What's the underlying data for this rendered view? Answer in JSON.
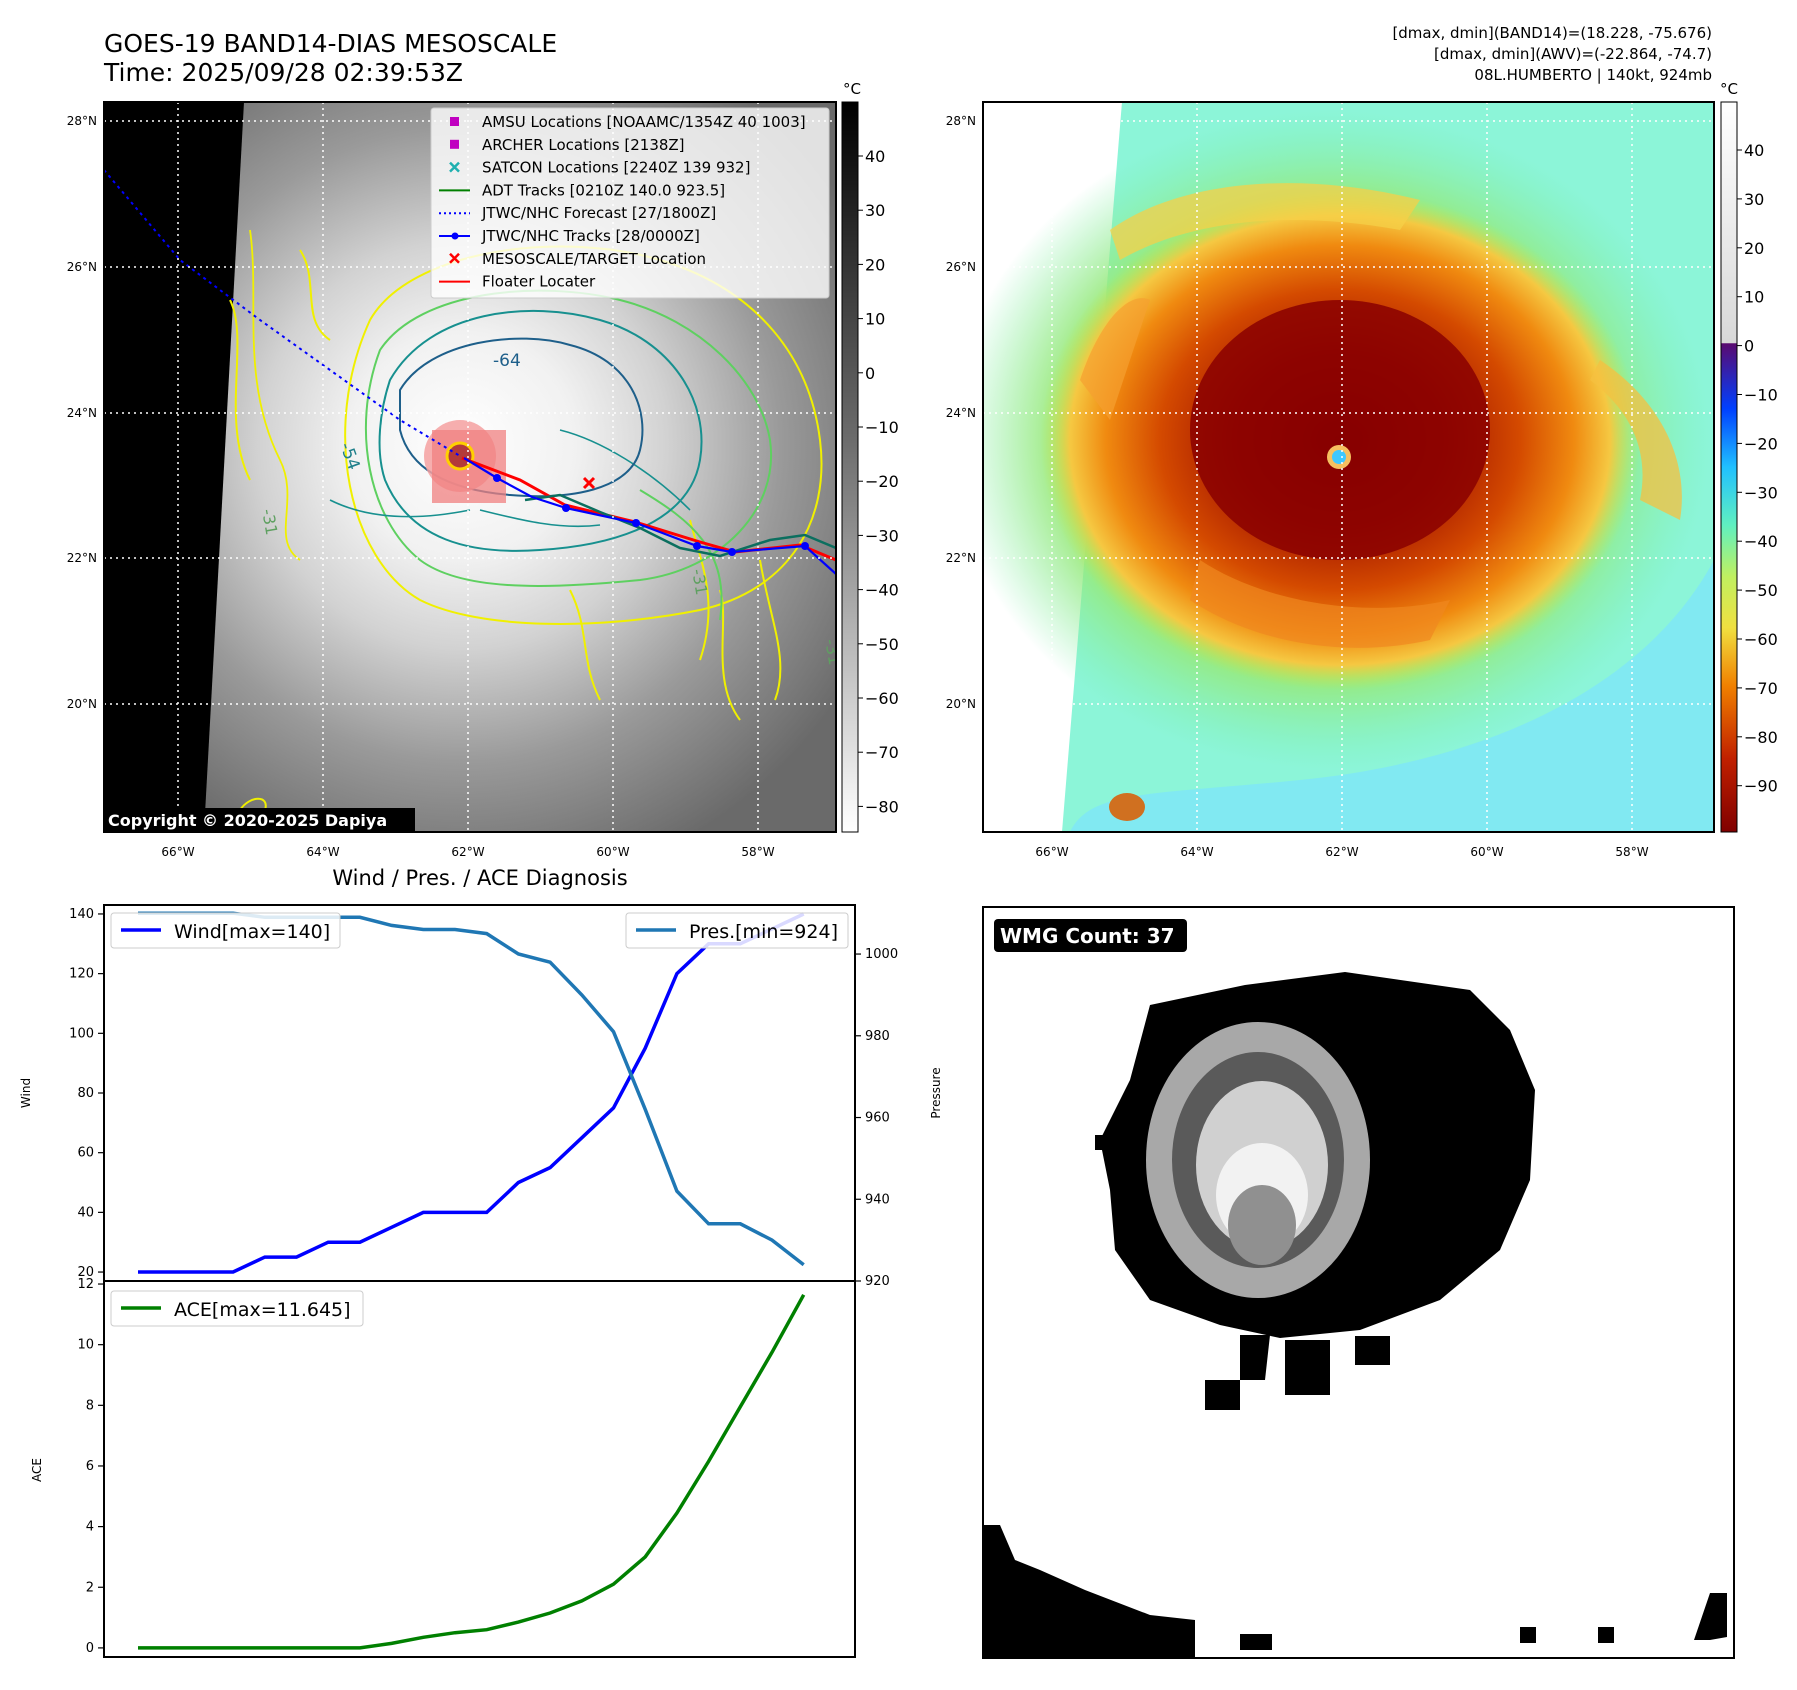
{
  "header": {
    "title_line1": "GOES-19 BAND14-DIAS MESOSCALE",
    "title_line2": "Time: 2025/09/28 02:39:53Z",
    "info_line1": "[dmax, dmin](BAND14)=(18.228, -75.676)",
    "info_line2": "[dmax, dmin](AWV)=(-22.864, -74.7)",
    "info_line3": "08L.HUMBERTO | 140kt, 924mb"
  },
  "map_axes": {
    "lon_labels": [
      "66°W",
      "64°W",
      "62°W",
      "60°W",
      "58°W"
    ],
    "lat_labels": [
      "28°N",
      "26°N",
      "24°N",
      "22°N",
      "20°N"
    ]
  },
  "left_map": {
    "copyright": "Copyright © 2020-2025 Dapiya",
    "contour_labels": [
      "-64",
      "-54",
      "-31",
      "-31",
      "-31"
    ],
    "legend": [
      {
        "label": "AMSU Locations [NOAAMC/1354Z 40 1003]",
        "color": "#c000c0",
        "marker": "square"
      },
      {
        "label": "ARCHER Locations [2138Z]",
        "color": "#c000c0",
        "marker": "square"
      },
      {
        "label": "SATCON Locations [2240Z 139 932]",
        "color": "#20b0b0",
        "marker": "x"
      },
      {
        "label": "ADT Tracks [0210Z 140.0 923.5]",
        "color": "#008000",
        "marker": "line"
      },
      {
        "label": "JTWC/NHC Forecast [27/1800Z]",
        "color": "#0000ff",
        "marker": "dotted"
      },
      {
        "label": "JTWC/NHC Tracks [28/0000Z]",
        "color": "#0000ff",
        "marker": "line-dot"
      },
      {
        "label": "MESOSCALE/TARGET Location",
        "color": "#ff0000",
        "marker": "x"
      },
      {
        "label": "Floater Locater",
        "color": "#ff0000",
        "marker": "line"
      }
    ],
    "colorbar_unit": "°C",
    "colorbar_ticks": [
      "40",
      "30",
      "20",
      "10",
      "0",
      "−10",
      "−20",
      "−30",
      "−40",
      "−50",
      "−60",
      "−70",
      "−80"
    ]
  },
  "right_map": {
    "colorbar_unit": "°C",
    "colorbar_ticks": [
      "40",
      "30",
      "20",
      "10",
      "0",
      "−10",
      "−20",
      "−30",
      "−40",
      "−50",
      "−60",
      "−70",
      "−80",
      "−90"
    ]
  },
  "wmg": {
    "label": "WMG Count: 37"
  },
  "chart_data": [
    {
      "type": "line",
      "title": "Wind / Pres. / ACE Diagnosis",
      "ylabel": "Wind",
      "ylabel_right": "Pressure",
      "ylim": [
        17,
        143
      ],
      "ylim_right": [
        920,
        1012
      ],
      "yticks": [
        20,
        40,
        60,
        80,
        100,
        120,
        140
      ],
      "yticks_right": [
        920,
        940,
        960,
        980,
        1000
      ],
      "series": [
        {
          "name": "Wind[max=140]",
          "color": "#0000ff",
          "values": [
            20,
            20,
            20,
            20,
            25,
            25,
            30,
            30,
            35,
            40,
            40,
            40,
            50,
            55,
            65,
            75,
            95,
            120,
            130,
            130,
            135,
            140
          ]
        },
        {
          "name": "Pres.[min=924]",
          "color": "#1f77b4",
          "values": [
            1010,
            1010,
            1010,
            1010,
            1009,
            1009,
            1009,
            1009,
            1007,
            1006,
            1006,
            1005,
            1000,
            998,
            990,
            981,
            962,
            942,
            934,
            934,
            930,
            924
          ]
        }
      ]
    },
    {
      "type": "line",
      "ylabel": "ACE",
      "ylim": [
        -0.3,
        12.1
      ],
      "yticks": [
        0,
        2,
        4,
        6,
        8,
        10,
        12
      ],
      "series": [
        {
          "name": "ACE[max=11.645]",
          "color": "#008000",
          "values": [
            0,
            0,
            0,
            0,
            0,
            0,
            0,
            0,
            0.15,
            0.35,
            0.5,
            0.6,
            0.85,
            1.15,
            1.55,
            2.1,
            3.0,
            4.45,
            6.15,
            7.95,
            9.75,
            11.645
          ]
        }
      ]
    }
  ]
}
